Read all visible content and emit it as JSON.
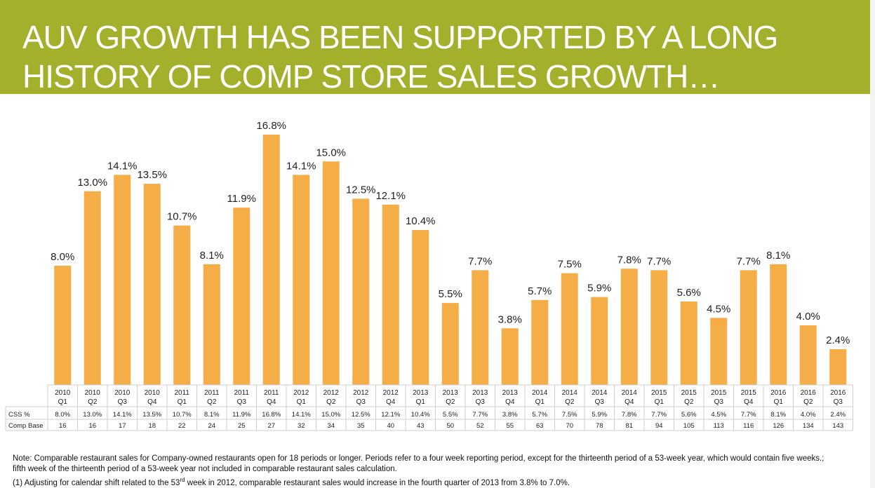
{
  "title": {
    "line1": "AUV GROWTH HAS BEEN SUPPORTED BY A LONG",
    "line2": "HISTORY OF COMP STORE SALES GROWTH…"
  },
  "colors": {
    "banner": "#a4b02c",
    "bar": "#f5ad47",
    "grid": "#cfcfcf"
  },
  "chart_data": {
    "type": "bar",
    "categories": [
      [
        "2010",
        "Q1"
      ],
      [
        "2010",
        "Q2"
      ],
      [
        "2010",
        "Q3"
      ],
      [
        "2010",
        "Q4"
      ],
      [
        "2011",
        "Q1"
      ],
      [
        "2011",
        "Q2"
      ],
      [
        "2011",
        "Q3"
      ],
      [
        "2011",
        "Q4"
      ],
      [
        "2012",
        "Q1"
      ],
      [
        "2012",
        "Q2"
      ],
      [
        "2012",
        "Q3"
      ],
      [
        "2012",
        "Q4"
      ],
      [
        "2013",
        "Q1"
      ],
      [
        "2013",
        "Q2"
      ],
      [
        "2013",
        "Q3"
      ],
      [
        "2013",
        "Q4"
      ],
      [
        "2014",
        "Q1"
      ],
      [
        "2014",
        "Q2"
      ],
      [
        "2014",
        "Q3"
      ],
      [
        "2014",
        "Q4"
      ],
      [
        "2015",
        "Q1"
      ],
      [
        "2015",
        "Q2"
      ],
      [
        "2015",
        "Q3"
      ],
      [
        "2015",
        "Q4"
      ],
      [
        "2016",
        "Q1"
      ],
      [
        "2016",
        "Q2"
      ],
      [
        "2016",
        "Q3"
      ]
    ],
    "values": [
      8.0,
      13.0,
      14.1,
      13.5,
      10.7,
      8.1,
      11.9,
      16.8,
      14.1,
      15.0,
      12.5,
      12.1,
      10.4,
      5.5,
      7.7,
      3.8,
      5.7,
      7.5,
      5.9,
      7.8,
      7.7,
      5.6,
      4.5,
      7.7,
      8.1,
      4.0,
      2.4
    ],
    "bar_labels": [
      "8.0%",
      "13.0%",
      "14.1%",
      "13.5%",
      "10.7%",
      "8.1%",
      "11.9%",
      "16.8%",
      "14.1%",
      "15.0%",
      "12.5%",
      "12.1%",
      "10.4%",
      "5.5%",
      "7.7%",
      "3.8%",
      "5.7%",
      "7.5%",
      "5.9%",
      "7.8%",
      "7.7%",
      "5.6%",
      "4.5%",
      "7.7%",
      "8.1%",
      "4.0%",
      "2.4%"
    ],
    "ylim": [
      0,
      17.5
    ],
    "legend": "none",
    "table": {
      "rows": [
        {
          "label": "CSS %",
          "values": [
            "8.0%",
            "13.0%",
            "14.1%",
            "13.5%",
            "10.7%",
            "8.1%",
            "11.9%",
            "16.8%",
            "14.1%",
            "15.0%",
            "12.5%",
            "12.1%",
            "10.4%",
            "5.5%",
            "7.7%",
            "3.8%",
            "5.7%",
            "7.5%",
            "5.9%",
            "7.8%",
            "7.7%",
            "5.6%",
            "4.5%",
            "7.7%",
            "8.1%",
            "4.0%",
            "2.4%"
          ]
        },
        {
          "label": "Comp Base",
          "values": [
            "16",
            "16",
            "17",
            "18",
            "22",
            "24",
            "25",
            "27",
            "32",
            "34",
            "35",
            "40",
            "43",
            "50",
            "52",
            "55",
            "63",
            "70",
            "78",
            "81",
            "94",
            "105",
            "113",
            "116",
            "126",
            "134",
            "143"
          ]
        }
      ]
    }
  },
  "notes": {
    "line1": "Note:  Comparable restaurant sales for Company-owned restaurants open for 18 periods or longer.  Periods refer to a four week reporting period, except for the thirteenth period of a 53-week year, which would contain five weeks.;",
    "line2": "fifth week of the thirteenth period of a 53-week year not included in comparable restaurant sales calculation.",
    "line3_pre": "(1)  Adjusting for calendar shift related to the 53",
    "line3_sup": "rd",
    "line3_post": " week in 2012, comparable restaurant sales would increase in the fourth quarter of 2013 from 3.8% to 7.0%."
  }
}
